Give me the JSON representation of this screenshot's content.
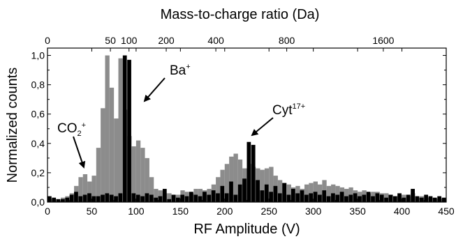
{
  "chart_data": {
    "type": "bar",
    "xlabel": "RF Amplitude (V)",
    "ylabel": "Normalized counts",
    "top_xlabel": "Mass-to-charge ratio (Da)",
    "xlim": [
      0,
      450
    ],
    "ylim": [
      0,
      1.05
    ],
    "x_ticks": [
      0,
      50,
      100,
      150,
      200,
      250,
      300,
      350,
      400,
      450
    ],
    "x_tick_labels": [
      "0",
      "50",
      "100",
      "150",
      "200",
      "250",
      "300",
      "350",
      "400",
      "450"
    ],
    "y_ticks": [
      0,
      0.2,
      0.4,
      0.6,
      0.8,
      1.0
    ],
    "y_tick_labels": [
      "0,0",
      "0,2",
      "0,4",
      "0,6",
      "0,8",
      "1,0"
    ],
    "top_ticks": [
      {
        "label": "0",
        "at_rf": 0
      },
      {
        "label": "50",
        "at_rf": 71
      },
      {
        "label": "100",
        "at_rf": 92
      },
      {
        "label": "200",
        "at_rf": 134
      },
      {
        "label": "400",
        "at_rf": 190
      },
      {
        "label": "800",
        "at_rf": 270
      },
      {
        "label": "1600",
        "at_rf": 379
      }
    ],
    "bin_width": 5,
    "series": [
      {
        "color": "#8c8c8c",
        "x": [
          2.5,
          7.5,
          12.5,
          17.5,
          22.5,
          27.5,
          32.5,
          37.5,
          42.5,
          47.5,
          52.5,
          57.5,
          62.5,
          67.5,
          72.5,
          77.5,
          82.5,
          87.5,
          92.5,
          97.5,
          102.5,
          107.5,
          112.5,
          117.5,
          122.5,
          127.5,
          132.5,
          137.5,
          142.5,
          147.5,
          152.5,
          157.5,
          162.5,
          167.5,
          172.5,
          177.5,
          182.5,
          187.5,
          192.5,
          197.5,
          202.5,
          207.5,
          212.5,
          217.5,
          222.5,
          227.5,
          232.5,
          237.5,
          242.5,
          247.5,
          252.5,
          257.5,
          262.5,
          267.5,
          272.5,
          277.5,
          282.5,
          287.5,
          292.5,
          297.5,
          302.5,
          307.5,
          312.5,
          317.5,
          322.5,
          327.5,
          332.5,
          337.5,
          342.5,
          347.5,
          352.5,
          357.5,
          362.5,
          367.5,
          372.5,
          377.5,
          382.5,
          387.5,
          392.5,
          397.5,
          402.5,
          407.5,
          412.5,
          417.5,
          422.5,
          427.5,
          432.5,
          437.5,
          442.5,
          447.5
        ],
        "values": [
          0.02,
          0.02,
          0.01,
          0.03,
          0.04,
          0.06,
          0.11,
          0.17,
          0.19,
          0.14,
          0.18,
          0.37,
          0.64,
          1.0,
          0.78,
          0.57,
          0.98,
          0.63,
          0.45,
          0.38,
          0.42,
          0.37,
          0.3,
          0.17,
          0.09,
          0.08,
          0.06,
          0.06,
          0.05,
          0.05,
          0.08,
          0.07,
          0.06,
          0.09,
          0.09,
          0.08,
          0.09,
          0.12,
          0.17,
          0.22,
          0.26,
          0.31,
          0.33,
          0.29,
          0.23,
          0.26,
          0.24,
          0.23,
          0.22,
          0.23,
          0.24,
          0.18,
          0.15,
          0.13,
          0.12,
          0.1,
          0.11,
          0.09,
          0.12,
          0.13,
          0.14,
          0.12,
          0.15,
          0.11,
          0.12,
          0.11,
          0.1,
          0.09,
          0.1,
          0.08,
          0.07,
          0.08,
          0.06,
          0.07,
          0.07,
          0.06,
          0.06,
          0.05,
          0.04,
          0.05,
          0.05,
          0.04,
          0.06,
          0.03,
          0.04,
          0.03,
          0.03,
          0.02,
          0.02,
          0.02
        ]
      },
      {
        "color": "#000000",
        "x": [
          2.5,
          7.5,
          12.5,
          17.5,
          22.5,
          27.5,
          32.5,
          37.5,
          42.5,
          47.5,
          52.5,
          57.5,
          62.5,
          67.5,
          72.5,
          77.5,
          82.5,
          87.5,
          92.5,
          97.5,
          102.5,
          107.5,
          112.5,
          117.5,
          122.5,
          127.5,
          132.5,
          137.5,
          142.5,
          147.5,
          152.5,
          157.5,
          162.5,
          167.5,
          172.5,
          177.5,
          182.5,
          187.5,
          192.5,
          197.5,
          202.5,
          207.5,
          212.5,
          217.5,
          222.5,
          227.5,
          232.5,
          237.5,
          242.5,
          247.5,
          252.5,
          257.5,
          262.5,
          267.5,
          272.5,
          277.5,
          282.5,
          287.5,
          292.5,
          297.5,
          302.5,
          307.5,
          312.5,
          317.5,
          322.5,
          327.5,
          332.5,
          337.5,
          342.5,
          347.5,
          352.5,
          357.5,
          362.5,
          367.5,
          372.5,
          377.5,
          382.5,
          387.5,
          392.5,
          397.5,
          402.5,
          407.5,
          412.5,
          417.5,
          422.5,
          427.5,
          432.5,
          437.5,
          442.5,
          447.5
        ],
        "values": [
          0.04,
          0.03,
          0.02,
          0.02,
          0.03,
          0.05,
          0.07,
          0.04,
          0.05,
          0.06,
          0.04,
          0.04,
          0.05,
          0.06,
          0.05,
          0.04,
          0.06,
          1.0,
          0.97,
          0.06,
          0.05,
          0.04,
          0.06,
          0.05,
          0.03,
          0.04,
          0.09,
          0.02,
          0.05,
          0.03,
          0.05,
          0.04,
          0.07,
          0.05,
          0.04,
          0.07,
          0.05,
          0.08,
          0.06,
          0.11,
          0.06,
          0.14,
          0.05,
          0.12,
          0.16,
          0.41,
          0.39,
          0.15,
          0.08,
          0.12,
          0.07,
          0.11,
          0.06,
          0.13,
          0.05,
          0.09,
          0.06,
          0.08,
          0.05,
          0.06,
          0.07,
          0.05,
          0.08,
          0.04,
          0.06,
          0.05,
          0.07,
          0.04,
          0.05,
          0.06,
          0.04,
          0.05,
          0.07,
          0.04,
          0.06,
          0.05,
          0.03,
          0.05,
          0.04,
          0.06,
          0.03,
          0.05,
          0.09,
          0.04,
          0.03,
          0.05,
          0.04,
          0.03,
          0.04,
          0.03
        ]
      }
    ],
    "annotations": [
      {
        "text": "CO",
        "sub": "2",
        "sup": "+",
        "target_x": 40,
        "target_y": 0.2
      },
      {
        "text": "Ba",
        "sup": "+",
        "target_x": 100,
        "target_y": 0.6
      },
      {
        "text": "Cyt",
        "sup": "17+",
        "target_x": 228,
        "target_y": 0.43
      }
    ]
  }
}
